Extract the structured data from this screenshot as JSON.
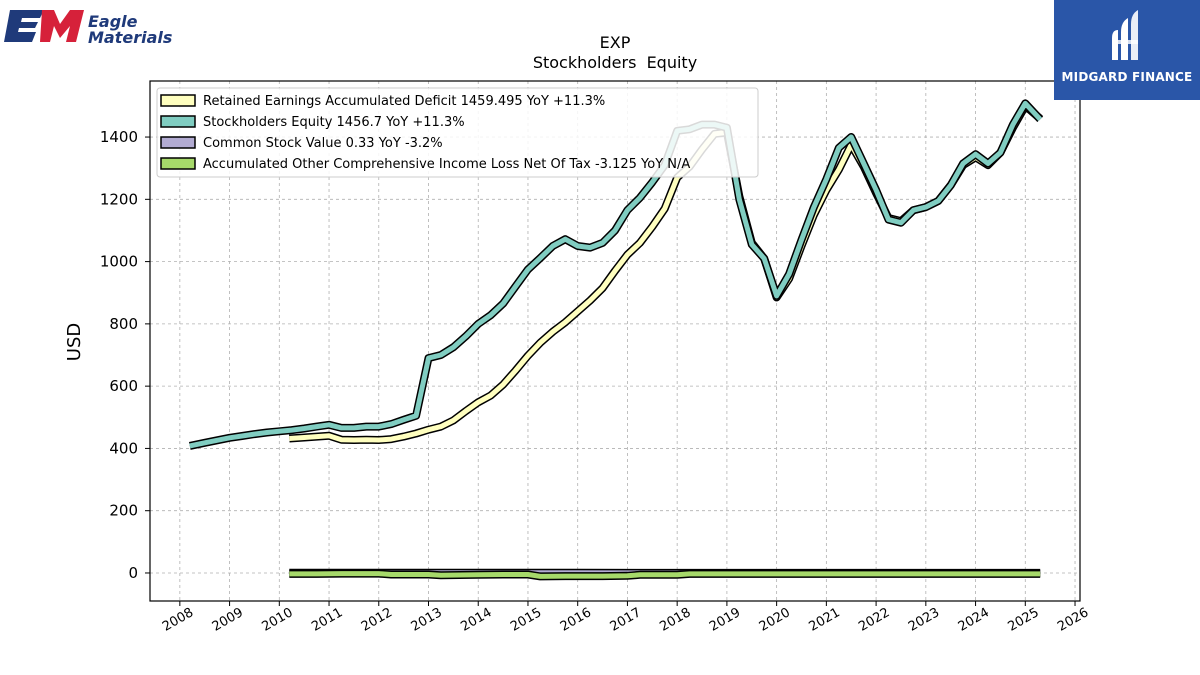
{
  "logos": {
    "left": {
      "line1": "Eagle",
      "line2": "Materials",
      "mark": "EM",
      "colors": [
        "#1f3a7a",
        "#d6213a"
      ]
    },
    "right": {
      "text": "MIDGARD FINANCE",
      "background": "#2a56a8"
    }
  },
  "chart_data": {
    "type": "line",
    "title": "EXP",
    "subtitle": "Stockholders  Equity",
    "xlabel": "",
    "ylabel": "USD",
    "xlim": [
      2007.4,
      2026.1
    ],
    "ylim": [
      -90,
      1580
    ],
    "grid": true,
    "legend_position": "top-left",
    "x_ticks": [
      "2008",
      "2009",
      "2010",
      "2011",
      "2012",
      "2013",
      "2014",
      "2015",
      "2016",
      "2017",
      "2018",
      "2019",
      "2020",
      "2021",
      "2022",
      "2023",
      "2024",
      "2025",
      "2026"
    ],
    "y_ticks": [
      "0",
      "200",
      "400",
      "600",
      "800",
      "1000",
      "1200",
      "1400"
    ],
    "series": [
      {
        "name": "Retained Earnings Accumulated Deficit  1459.495 YoY +11.3%",
        "color": "#ffffbf",
        "points": [
          [
            2010.2,
            432
          ],
          [
            2010.5,
            435
          ],
          [
            2010.75,
            438
          ],
          [
            2011.0,
            441
          ],
          [
            2011.25,
            428
          ],
          [
            2011.5,
            427
          ],
          [
            2011.75,
            428
          ],
          [
            2012.0,
            427
          ],
          [
            2012.25,
            430
          ],
          [
            2012.5,
            438
          ],
          [
            2012.75,
            448
          ],
          [
            2013.0,
            460
          ],
          [
            2013.25,
            470
          ],
          [
            2013.5,
            490
          ],
          [
            2013.75,
            520
          ],
          [
            2014.0,
            548
          ],
          [
            2014.25,
            570
          ],
          [
            2014.5,
            605
          ],
          [
            2014.75,
            650
          ],
          [
            2015.0,
            698
          ],
          [
            2015.25,
            740
          ],
          [
            2015.5,
            775
          ],
          [
            2015.75,
            805
          ],
          [
            2016.0,
            840
          ],
          [
            2016.25,
            875
          ],
          [
            2016.5,
            915
          ],
          [
            2016.75,
            970
          ],
          [
            2017.0,
            1022
          ],
          [
            2017.25,
            1060
          ],
          [
            2017.5,
            1112
          ],
          [
            2017.75,
            1170
          ],
          [
            2018.0,
            1270
          ],
          [
            2018.25,
            1305
          ],
          [
            2018.5,
            1360
          ],
          [
            2018.75,
            1410
          ],
          [
            2019.0,
            1415
          ],
          [
            2019.25,
            1210
          ],
          [
            2019.5,
            1060
          ],
          [
            2019.75,
            1010
          ],
          [
            2020.0,
            885
          ],
          [
            2020.25,
            945
          ],
          [
            2020.5,
            1050
          ],
          [
            2020.75,
            1150
          ],
          [
            2021.0,
            1230
          ],
          [
            2021.25,
            1295
          ],
          [
            2021.5,
            1375
          ],
          [
            2021.75,
            1305
          ],
          [
            2022.0,
            1220
          ],
          [
            2022.25,
            1140
          ],
          [
            2022.5,
            1130
          ],
          [
            2022.75,
            1165
          ],
          [
            2023.0,
            1175
          ],
          [
            2023.25,
            1195
          ],
          [
            2023.5,
            1245
          ],
          [
            2023.75,
            1310
          ],
          [
            2024.0,
            1335
          ],
          [
            2024.25,
            1310
          ],
          [
            2024.5,
            1350
          ],
          [
            2024.75,
            1430
          ],
          [
            2025.0,
            1500
          ],
          [
            2025.3,
            1459
          ]
        ]
      },
      {
        "name": "Stockholders Equity  1456.7 YoY +11.3%",
        "color": "#80cdc1",
        "points": [
          [
            2008.2,
            408
          ],
          [
            2008.5,
            418
          ],
          [
            2008.75,
            426
          ],
          [
            2009.0,
            434
          ],
          [
            2009.25,
            440
          ],
          [
            2009.5,
            446
          ],
          [
            2009.75,
            451
          ],
          [
            2010.0,
            455
          ],
          [
            2010.25,
            459
          ],
          [
            2010.5,
            464
          ],
          [
            2010.75,
            470
          ],
          [
            2011.0,
            476
          ],
          [
            2011.25,
            466
          ],
          [
            2011.5,
            466
          ],
          [
            2011.75,
            470
          ],
          [
            2012.0,
            470
          ],
          [
            2012.25,
            478
          ],
          [
            2012.5,
            492
          ],
          [
            2012.75,
            505
          ],
          [
            2013.0,
            690
          ],
          [
            2013.25,
            700
          ],
          [
            2013.5,
            725
          ],
          [
            2013.75,
            760
          ],
          [
            2014.0,
            800
          ],
          [
            2014.25,
            828
          ],
          [
            2014.5,
            865
          ],
          [
            2014.75,
            920
          ],
          [
            2015.0,
            975
          ],
          [
            2015.25,
            1012
          ],
          [
            2015.5,
            1050
          ],
          [
            2015.75,
            1072
          ],
          [
            2016.0,
            1050
          ],
          [
            2016.25,
            1045
          ],
          [
            2016.5,
            1060
          ],
          [
            2016.75,
            1100
          ],
          [
            2017.0,
            1165
          ],
          [
            2017.25,
            1205
          ],
          [
            2017.5,
            1255
          ],
          [
            2017.75,
            1310
          ],
          [
            2018.0,
            1420
          ],
          [
            2018.25,
            1425
          ],
          [
            2018.5,
            1440
          ],
          [
            2018.75,
            1440
          ],
          [
            2019.0,
            1430
          ],
          [
            2019.25,
            1200
          ],
          [
            2019.5,
            1055
          ],
          [
            2019.75,
            1010
          ],
          [
            2020.0,
            890
          ],
          [
            2020.25,
            960
          ],
          [
            2020.5,
            1070
          ],
          [
            2020.75,
            1175
          ],
          [
            2021.0,
            1265
          ],
          [
            2021.25,
            1365
          ],
          [
            2021.5,
            1400
          ],
          [
            2021.75,
            1315
          ],
          [
            2022.0,
            1230
          ],
          [
            2022.25,
            1135
          ],
          [
            2022.5,
            1125
          ],
          [
            2022.75,
            1165
          ],
          [
            2023.0,
            1175
          ],
          [
            2023.25,
            1195
          ],
          [
            2023.5,
            1245
          ],
          [
            2023.75,
            1315
          ],
          [
            2024.0,
            1345
          ],
          [
            2024.25,
            1315
          ],
          [
            2024.5,
            1350
          ],
          [
            2024.75,
            1440
          ],
          [
            2025.0,
            1508
          ],
          [
            2025.3,
            1457
          ]
        ]
      },
      {
        "name": "Common Stock Value  0.33 YoY -3.2%",
        "color": "#b2abd2",
        "points": [
          [
            2010.2,
            0.5
          ],
          [
            2012.0,
            0.5
          ],
          [
            2014.0,
            0.5
          ],
          [
            2016.0,
            0.5
          ],
          [
            2018.0,
            0.4
          ],
          [
            2020.0,
            0.4
          ],
          [
            2022.0,
            0.4
          ],
          [
            2024.0,
            0.34
          ],
          [
            2025.3,
            0.33
          ]
        ]
      },
      {
        "name": "Accumulated Other Comprehensive Income Loss Net Of Tax  -3.125 YoY N/A",
        "color": "#a6d96a",
        "points": [
          [
            2010.2,
            -3
          ],
          [
            2010.75,
            -3
          ],
          [
            2011.25,
            -2
          ],
          [
            2012.0,
            -2
          ],
          [
            2012.25,
            -5
          ],
          [
            2013.0,
            -5
          ],
          [
            2013.25,
            -7
          ],
          [
            2014.0,
            -6
          ],
          [
            2014.5,
            -5
          ],
          [
            2015.0,
            -5
          ],
          [
            2015.25,
            -11
          ],
          [
            2015.75,
            -10
          ],
          [
            2016.5,
            -10
          ],
          [
            2017.0,
            -9
          ],
          [
            2017.25,
            -6
          ],
          [
            2018.0,
            -6
          ],
          [
            2018.25,
            -3
          ],
          [
            2019.0,
            -3
          ],
          [
            2020.0,
            -3
          ],
          [
            2021.0,
            -3
          ],
          [
            2022.0,
            -3
          ],
          [
            2023.0,
            -3
          ],
          [
            2024.0,
            -3
          ],
          [
            2025.3,
            -3.125
          ]
        ]
      }
    ]
  }
}
